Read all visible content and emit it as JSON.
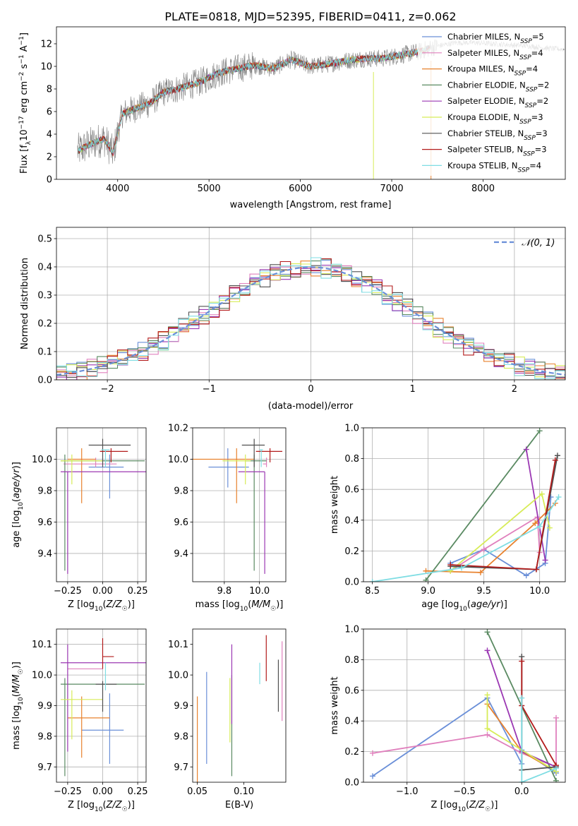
{
  "title": "PLATE=0818, MJD=52395, FIBERID=0411, z=0.062",
  "colors": {
    "Chabrier MILES": "#6a8fd8",
    "Salpeter MILES": "#e080bd",
    "Kroupa MILES": "#e8822e",
    "Chabrier ELODIE": "#5a8a62",
    "Salpeter ELODIE": "#9b38b3",
    "Kroupa ELODIE": "#d7ec58",
    "Chabrier STELIB": "#505050",
    "Salpeter STELIB": "#b31b1b",
    "Kroupa STELIB": "#7fdde3",
    "data": "#808080"
  },
  "chart_data": [
    {
      "type": "line",
      "title": "PLATE=0818, MJD=52395, FIBERID=0411, z=0.062",
      "xlabel": "wavelength [Angstrom, rest frame]",
      "ylabel": "Flux [f_λ10⁻¹⁷ erg cm⁻² s⁻¹ A⁻¹]",
      "xlim": [
        3330,
        8900
      ],
      "ylim": [
        0,
        13.5
      ],
      "xticks": [
        "4000",
        "5000",
        "6000",
        "7000",
        "8000"
      ],
      "yticks": [
        "0",
        "2",
        "4",
        "6",
        "8",
        "10",
        "12"
      ],
      "legend_position": "top-right",
      "legend": [
        "Chabrier MILES, N_SSP=5",
        "Salpeter MILES, N_SSP=4",
        "Kroupa MILES, N_SSP=4",
        "Chabrier ELODIE, N_SSP=2",
        "Salpeter ELODIE, N_SSP=2",
        "Kroupa ELODIE, N_SSP=3",
        "Chabrier STELIB, N_SSP=3",
        "Salpeter STELIB, N_SSP=3",
        "Kroupa STELIB, N_SSP=4"
      ],
      "continuum": {
        "x": [
          3560,
          3700,
          3850,
          3950,
          4050,
          4200,
          4350,
          4500,
          4700,
          4900,
          5100,
          5300,
          5500,
          5700,
          5900,
          6100,
          6300,
          6500,
          6700,
          6900,
          7100,
          7300,
          7500,
          7700,
          7900,
          8100,
          8300,
          8500,
          8700,
          8890
        ],
        "y": [
          2.5,
          3.1,
          3.6,
          2.3,
          5.8,
          6.3,
          6.7,
          7.7,
          8.1,
          8.6,
          9.4,
          9.8,
          10.1,
          9.8,
          10.6,
          10.0,
          10.2,
          10.5,
          10.7,
          10.7,
          11.0,
          11.3,
          11.8,
          12.1,
          12.1,
          12.0,
          11.9,
          11.8,
          11.6,
          11.5
        ]
      },
      "grid": false
    },
    {
      "type": "line",
      "xlabel": "(data-model)/error",
      "ylabel": "Normed distribution",
      "xlim": [
        -2.5,
        2.5
      ],
      "ylim": [
        0,
        0.54
      ],
      "xticks": [
        "−2",
        "−1",
        "0",
        "1",
        "2"
      ],
      "yticks": [
        "0.0",
        "0.1",
        "0.2",
        "0.3",
        "0.4",
        "0.5"
      ],
      "legend": [
        "𝒩(0, 1)"
      ],
      "legend_position": "top-right",
      "bin_width": 0.1,
      "grid": true
    },
    {
      "type": "scatter",
      "xlabel": "Z [log₁₀(Z/Z☉)]",
      "ylabel": "age  [log₁₀(age/yr)]",
      "xlim": [
        -0.33,
        0.31
      ],
      "ylim": [
        9.22,
        10.2
      ],
      "xticks": [
        "−0.25",
        "0.00",
        "0.25"
      ],
      "yticks": [
        "9.4",
        "9.6",
        "9.8",
        "10.0"
      ],
      "series": [
        {
          "name": "Chabrier MILES",
          "x": 0.05,
          "y": 9.95,
          "xerr": [
            0.15,
            0.1
          ],
          "yerr": [
            0.2,
            0.08
          ]
        },
        {
          "name": "Salpeter MILES",
          "x": -0.05,
          "y": 9.97,
          "xerr": [
            0.23,
            0.15
          ],
          "yerr": [
            0.02,
            0.04
          ]
        },
        {
          "name": "Kroupa MILES",
          "x": -0.15,
          "y": 10.0,
          "xerr": [
            0.1,
            0.1
          ],
          "yerr": [
            0.28,
            0.07
          ]
        },
        {
          "name": "Chabrier ELODIE",
          "x": -0.27,
          "y": 9.99,
          "xerr": [
            0.03,
            0.57
          ],
          "yerr": [
            0.7,
            0.04
          ]
        },
        {
          "name": "Salpeter ELODIE",
          "x": -0.25,
          "y": 9.92,
          "xerr": [
            0.05,
            0.56
          ],
          "yerr": [
            0.65,
            0.0
          ]
        },
        {
          "name": "Kroupa ELODIE",
          "x": -0.22,
          "y": 9.99,
          "xerr": [
            0.08,
            0.22
          ],
          "yerr": [
            0.15,
            0.04
          ]
        },
        {
          "name": "Chabrier STELIB",
          "x": 0.0,
          "y": 10.09,
          "xerr": [
            0.1,
            0.2
          ],
          "yerr": [
            0.14,
            0.04
          ]
        },
        {
          "name": "Salpeter STELIB",
          "x": 0.06,
          "y": 10.05,
          "xerr": [
            0.08,
            0.12
          ],
          "yerr": [
            0.07,
            0.02
          ]
        },
        {
          "name": "Kroupa STELIB",
          "x": 0.02,
          "y": 10.06,
          "xerr": [
            0.03,
            0.03
          ],
          "yerr": [
            0.11,
            0.0
          ]
        }
      ],
      "grid": true
    },
    {
      "type": "scatter",
      "xlabel": "mass [log₁₀(M/M☉)]",
      "xlim": [
        9.62,
        10.15
      ],
      "ylim": [
        9.22,
        10.2
      ],
      "xticks": [
        "9.8",
        "10.0"
      ],
      "yticks": [
        "9.4",
        "9.6",
        "9.8",
        "10.0",
        "10.2"
      ],
      "series": [
        {
          "name": "Chabrier MILES",
          "x": 9.82,
          "y": 9.95,
          "xerr": [
            0.11,
            0.12
          ],
          "yerr": [
            0.13,
            0.12
          ]
        },
        {
          "name": "Salpeter MILES",
          "x": 10.04,
          "y": 9.97,
          "xerr": [
            0.02,
            0.0
          ],
          "yerr": [
            0.02,
            0.04
          ]
        },
        {
          "name": "Kroupa MILES",
          "x": 9.87,
          "y": 10.0,
          "xerr": [
            0.25,
            0.1
          ],
          "yerr": [
            0.28,
            0.07
          ]
        },
        {
          "name": "Chabrier ELODIE",
          "x": 9.97,
          "y": 9.99,
          "xerr": [
            0.05,
            0.07
          ],
          "yerr": [
            0.7,
            0.04
          ]
        },
        {
          "name": "Salpeter ELODIE",
          "x": 10.03,
          "y": 9.92,
          "xerr": [
            0.15,
            0.0
          ],
          "yerr": [
            0.65,
            0.0
          ]
        },
        {
          "name": "Kroupa ELODIE",
          "x": 9.92,
          "y": 9.99,
          "xerr": [
            0.13,
            0.03
          ],
          "yerr": [
            0.15,
            0.04
          ]
        },
        {
          "name": "Chabrier STELIB",
          "x": 9.97,
          "y": 10.09,
          "xerr": [
            0.07,
            0.06
          ],
          "yerr": [
            0.14,
            0.04
          ]
        },
        {
          "name": "Salpeter STELIB",
          "x": 10.06,
          "y": 10.05,
          "xerr": [
            0.08,
            0.07
          ],
          "yerr": [
            0.07,
            0.02
          ]
        },
        {
          "name": "Kroupa STELIB",
          "x": 10.01,
          "y": 10.06,
          "xerr": [
            0.01,
            0.01
          ],
          "yerr": [
            0.11,
            0.0
          ]
        }
      ],
      "grid": true
    },
    {
      "type": "line",
      "xlabel": "age  [log₁₀(age/yr)]",
      "ylabel": "mass weight",
      "xlim": [
        8.42,
        10.23
      ],
      "ylim": [
        0,
        1.0
      ],
      "xticks": [
        "8.5",
        "9.0",
        "9.5",
        "10.0"
      ],
      "yticks": [
        "0.0",
        "0.2",
        "0.4",
        "0.6",
        "0.8",
        "1.0"
      ],
      "series": [
        {
          "name": "Chabrier MILES",
          "x": [
            9.2,
            9.5,
            9.88,
            10.05,
            10.1
          ],
          "y": [
            0.12,
            0.21,
            0.04,
            0.12,
            0.55
          ]
        },
        {
          "name": "Salpeter MILES",
          "x": [
            9.2,
            9.5,
            9.98,
            10.0
          ],
          "y": [
            0.07,
            0.21,
            0.42,
            0.19
          ]
        },
        {
          "name": "Kroupa MILES",
          "x": [
            8.98,
            9.47,
            9.96,
            10.14
          ],
          "y": [
            0.07,
            0.06,
            0.38,
            0.51
          ]
        },
        {
          "name": "Chabrier ELODIE",
          "x": [
            8.98,
            10.0
          ],
          "y": [
            0.01,
            0.98
          ]
        },
        {
          "name": "Salpeter ELODIE",
          "x": [
            9.88,
            10.05
          ],
          "y": [
            0.86,
            0.14
          ]
        },
        {
          "name": "Kroupa ELODIE",
          "x": [
            9.2,
            10.02,
            10.09
          ],
          "y": [
            0.07,
            0.57,
            0.35
          ]
        },
        {
          "name": "Chabrier STELIB",
          "x": [
            9.2,
            9.97,
            10.16
          ],
          "y": [
            0.1,
            0.08,
            0.82
          ]
        },
        {
          "name": "Salpeter STELIB",
          "x": [
            9.2,
            9.97,
            10.14
          ],
          "y": [
            0.11,
            0.08,
            0.79
          ]
        },
        {
          "name": "Kroupa STELIB",
          "x": [
            8.5,
            9.3,
            10.0,
            10.17
          ],
          "y": [
            0.0,
            0.09,
            0.36,
            0.55
          ]
        }
      ],
      "grid": true
    },
    {
      "type": "scatter",
      "xlabel": "Z [log₁₀(Z/Z☉)]",
      "ylabel": "mass [log₁₀(M/M☉)]",
      "xlim": [
        -0.33,
        0.31
      ],
      "ylim": [
        9.65,
        10.15
      ],
      "xticks": [
        "−0.25",
        "0.00",
        "0.25"
      ],
      "yticks": [
        "9.7",
        "9.8",
        "9.9",
        "10.0",
        "10.1"
      ],
      "series": [
        {
          "name": "Chabrier MILES",
          "x": 0.05,
          "y": 9.82,
          "xerr": [
            0.2,
            0.1
          ],
          "yerr": [
            0.11,
            0.12
          ]
        },
        {
          "name": "Salpeter MILES",
          "x": -0.05,
          "y": 10.02,
          "xerr": [
            0.2,
            0.05
          ],
          "yerr": [
            0.0,
            0.0
          ]
        },
        {
          "name": "Kroupa MILES",
          "x": -0.15,
          "y": 9.86,
          "xerr": [
            0.1,
            0.2
          ],
          "yerr": [
            0.13,
            0.07
          ]
        },
        {
          "name": "Chabrier ELODIE",
          "x": -0.27,
          "y": 9.97,
          "xerr": [
            0.03,
            0.57
          ],
          "yerr": [
            0.3,
            0.02
          ]
        },
        {
          "name": "Salpeter ELODIE",
          "x": -0.25,
          "y": 10.04,
          "xerr": [
            0.05,
            0.56
          ],
          "yerr": [
            0.29,
            0.06
          ]
        },
        {
          "name": "Kroupa ELODIE",
          "x": -0.22,
          "y": 9.92,
          "xerr": [
            0.08,
            0.22
          ],
          "yerr": [
            0.13,
            0.03
          ]
        },
        {
          "name": "Chabrier STELIB",
          "x": 0.0,
          "y": 9.97,
          "xerr": [
            0.05,
            0.1
          ],
          "yerr": [
            0.09,
            0.01
          ]
        },
        {
          "name": "Salpeter STELIB",
          "x": 0.0,
          "y": 10.06,
          "xerr": [
            0.0,
            0.08
          ],
          "yerr": [
            0.04,
            0.06
          ]
        },
        {
          "name": "Kroupa STELIB",
          "x": 0.02,
          "y": 10.0,
          "xerr": [
            0.0,
            0.0
          ],
          "yerr": [
            0.05,
            0.04
          ]
        }
      ],
      "grid": true
    },
    {
      "type": "scatter",
      "xlabel": "E(B-V)",
      "xlim": [
        0.045,
        0.145
      ],
      "ylim": [
        9.65,
        10.15
      ],
      "xticks": [
        "0.05",
        "0.10"
      ],
      "yticks": [
        "9.7",
        "9.8",
        "9.9",
        "10.0",
        "10.1"
      ],
      "series": [
        {
          "name": "Kroupa MILES",
          "x": 0.05,
          "y": 9.82,
          "yerr": [
            0.17,
            0.11
          ]
        },
        {
          "name": "Chabrier MILES",
          "x": 0.06,
          "y": 9.86,
          "yerr": [
            0.15,
            0.15
          ]
        },
        {
          "name": "Kroupa ELODIE",
          "x": 0.085,
          "y": 9.88,
          "yerr": [
            0.1,
            0.11
          ]
        },
        {
          "name": "Chabrier ELODIE",
          "x": 0.087,
          "y": 9.84,
          "yerr": [
            0.17,
            0.16
          ]
        },
        {
          "name": "Salpeter ELODIE",
          "x": 0.087,
          "y": 9.96,
          "yerr": [
            0.12,
            0.14
          ]
        },
        {
          "name": "Kroupa STELIB",
          "x": 0.117,
          "y": 10.01,
          "yerr": [
            0.04,
            0.03
          ]
        },
        {
          "name": "Salpeter STELIB",
          "x": 0.124,
          "y": 10.06,
          "yerr": [
            0.08,
            0.07
          ]
        },
        {
          "name": "Chabrier STELIB",
          "x": 0.137,
          "y": 9.97,
          "yerr": [
            0.09,
            0.08
          ]
        },
        {
          "name": "Salpeter MILES",
          "x": 0.141,
          "y": 9.98,
          "yerr": [
            0.13,
            0.13
          ]
        }
      ],
      "grid": false
    },
    {
      "type": "line",
      "xlabel": "Z [log₁₀(Z/Z☉)]",
      "ylabel": "mass weight",
      "xlim": [
        -1.38,
        0.38
      ],
      "ylim": [
        0,
        1.0
      ],
      "xticks": [
        "−1.0",
        "−0.5",
        "0.0"
      ],
      "yticks": [
        "0.0",
        "0.2",
        "0.4",
        "0.6",
        "0.8",
        "1.0"
      ],
      "series": [
        {
          "name": "Chabrier MILES",
          "x": [
            -1.3,
            -0.3,
            0.0,
            0.0,
            0.3
          ],
          "y": [
            0.04,
            0.55,
            0.12,
            0.21,
            0.06
          ]
        },
        {
          "name": "Salpeter MILES",
          "x": [
            -1.3,
            -0.3,
            0.0,
            0.3,
            0.3
          ],
          "y": [
            0.19,
            0.31,
            0.19,
            0.1,
            0.42
          ]
        },
        {
          "name": "Kroupa MILES",
          "x": [
            -0.3,
            0.0,
            0.3
          ],
          "y": [
            0.51,
            0.2,
            0.07
          ]
        },
        {
          "name": "Chabrier ELODIE",
          "x": [
            -0.3,
            0.3
          ],
          "y": [
            0.98,
            0.01
          ]
        },
        {
          "name": "Salpeter ELODIE",
          "x": [
            -0.3,
            0.0,
            0.3
          ],
          "y": [
            0.86,
            0.2,
            0.1
          ]
        },
        {
          "name": "Kroupa ELODIE",
          "x": [
            -0.3,
            -0.3,
            0.3
          ],
          "y": [
            0.57,
            0.35,
            0.07
          ]
        },
        {
          "name": "Chabrier STELIB",
          "x": [
            0.0,
            0.0,
            0.3
          ],
          "y": [
            0.82,
            0.08,
            0.1
          ]
        },
        {
          "name": "Salpeter STELIB",
          "x": [
            0.0,
            0.0,
            0.3
          ],
          "y": [
            0.79,
            0.5,
            0.11
          ]
        },
        {
          "name": "Kroupa STELIB",
          "x": [
            0.0,
            0.0,
            0.3
          ],
          "y": [
            0.55,
            0.0,
            0.09
          ]
        }
      ],
      "grid": true
    }
  ]
}
